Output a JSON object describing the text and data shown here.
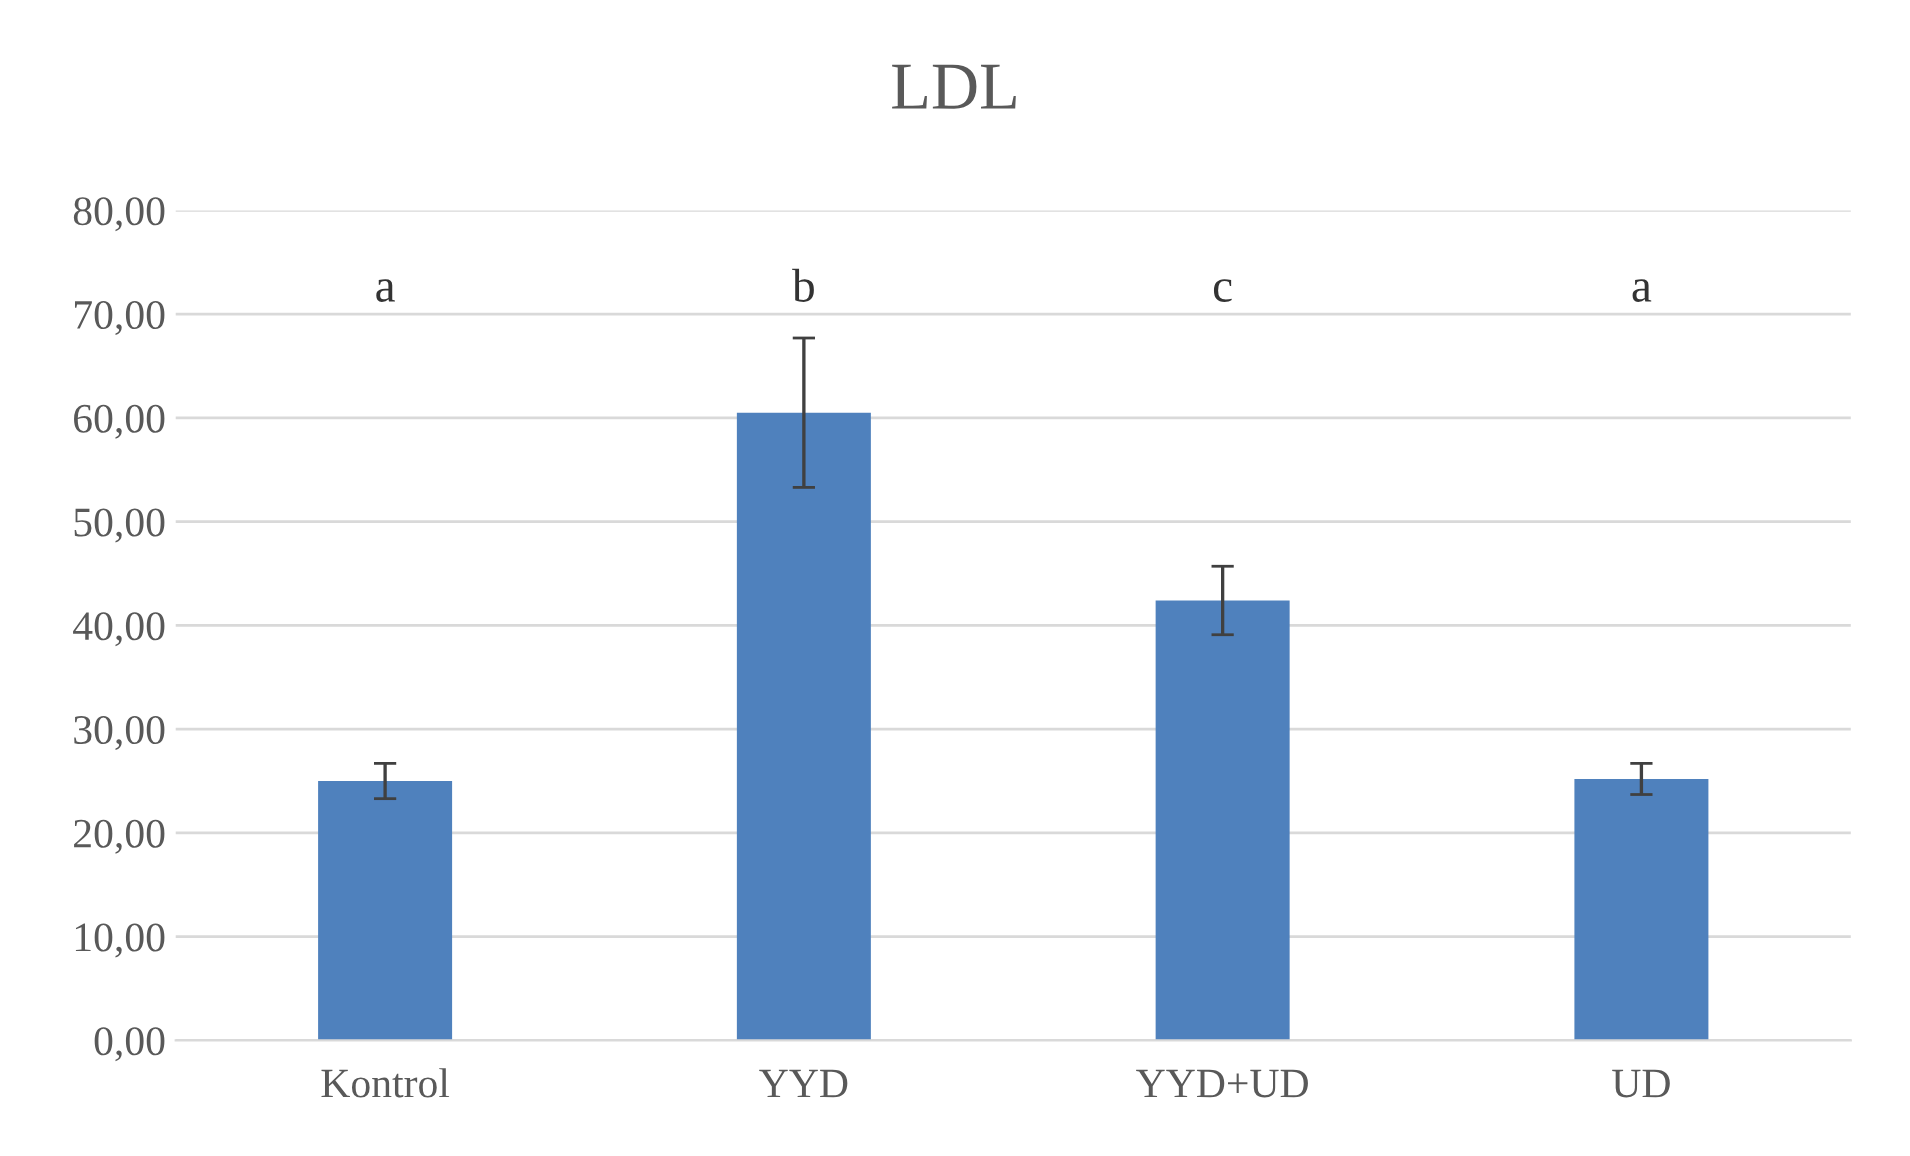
{
  "chart_data": {
    "type": "bar",
    "title": "LDL",
    "categories": [
      "Kontrol",
      "YYD",
      "YYD+UD",
      "UD"
    ],
    "values": [
      25.0,
      60.5,
      42.4,
      25.2
    ],
    "errors": [
      1.7,
      7.2,
      3.3,
      1.5
    ],
    "color": "#4f81bd",
    "ylim": [
      0,
      80
    ],
    "yticks": [
      {
        "value": 0,
        "label": "0,00"
      },
      {
        "value": 10,
        "label": "10,00"
      },
      {
        "value": 20,
        "label": "20,00"
      },
      {
        "value": 30,
        "label": "30,00"
      },
      {
        "value": 40,
        "label": "40,00"
      },
      {
        "value": 50,
        "label": "50,00"
      },
      {
        "value": 60,
        "label": "60,00"
      },
      {
        "value": 70,
        "label": "70,00"
      },
      {
        "value": 80,
        "label": "80,00"
      }
    ],
    "grid": "y",
    "annotations": [
      "a",
      "b",
      "c",
      "a"
    ]
  }
}
